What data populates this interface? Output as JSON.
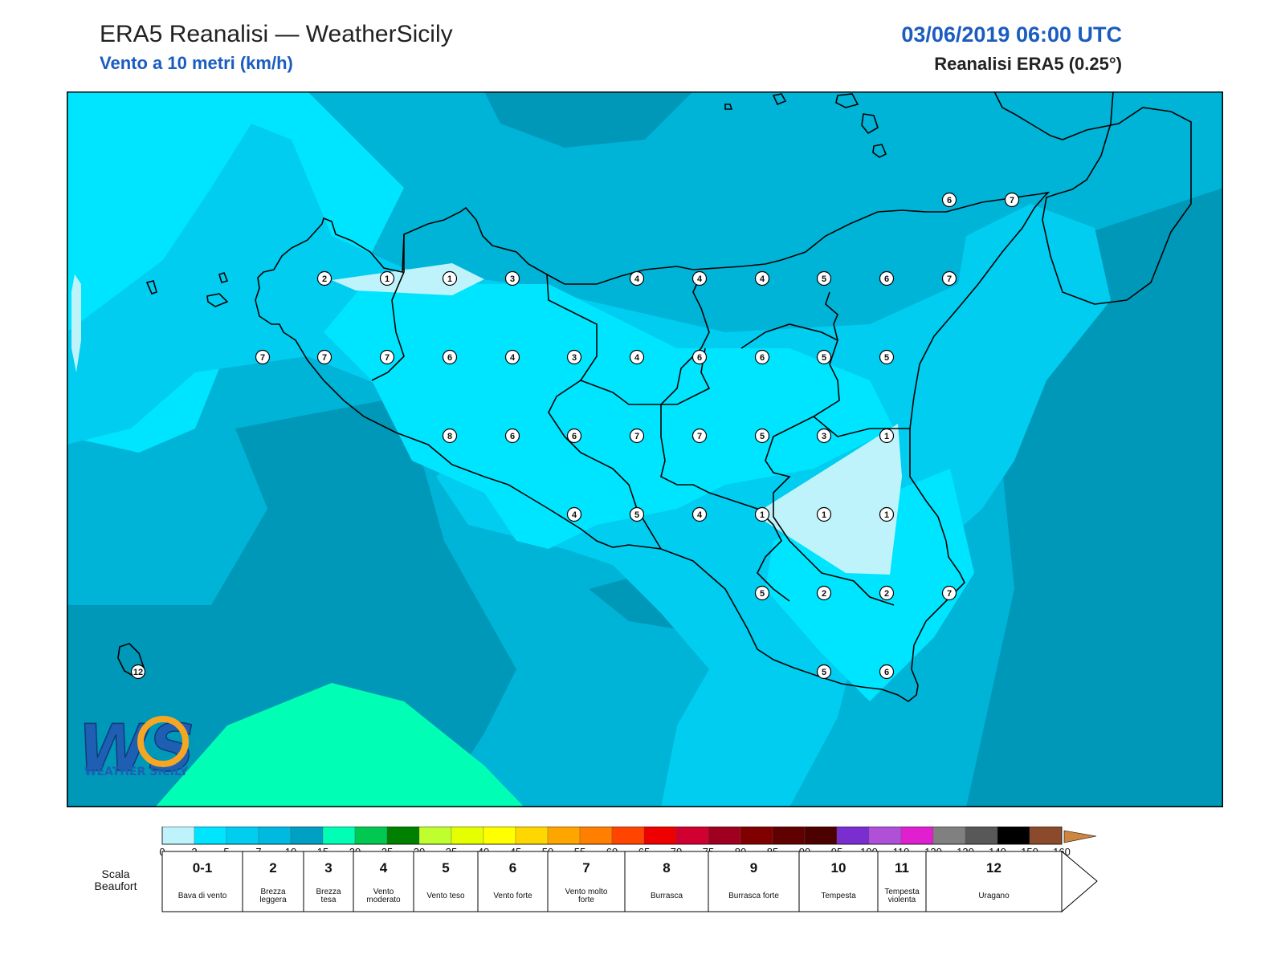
{
  "header": {
    "title": "ERA5 Reanalisi — WeatherSicily",
    "subtitle": "Vento a 10 metri (km/h)",
    "datetime": "03/06/2019 06:00 UTC",
    "reanalysis": "Reanalisi ERA5 (0.25°)"
  },
  "logo": {
    "letters": "WS",
    "text": "WEATHER SICILY"
  },
  "map": {
    "background_color": "#00b4d8",
    "markers": [
      {
        "v": "2"
      },
      {
        "v": "1"
      },
      {
        "v": "1"
      },
      {
        "v": "3"
      },
      {
        "v": "4"
      },
      {
        "v": "4"
      },
      {
        "v": "4"
      },
      {
        "v": "5"
      },
      {
        "v": "6"
      },
      {
        "v": "7"
      },
      {
        "v": "7"
      },
      {
        "v": "7"
      },
      {
        "v": "7"
      },
      {
        "v": "6"
      },
      {
        "v": "4"
      },
      {
        "v": "3"
      },
      {
        "v": "4"
      },
      {
        "v": "6"
      },
      {
        "v": "6"
      },
      {
        "v": "5"
      },
      {
        "v": "5"
      },
      {
        "v": "8"
      },
      {
        "v": "6"
      },
      {
        "v": "6"
      },
      {
        "v": "7"
      },
      {
        "v": "7"
      },
      {
        "v": "5"
      },
      {
        "v": "3"
      },
      {
        "v": "1"
      },
      {
        "v": "4"
      },
      {
        "v": "5"
      },
      {
        "v": "4"
      },
      {
        "v": "1"
      },
      {
        "v": "1"
      },
      {
        "v": "1"
      },
      {
        "v": "5"
      },
      {
        "v": "2"
      },
      {
        "v": "2"
      },
      {
        "v": "7"
      },
      {
        "v": "5"
      },
      {
        "v": "6"
      },
      {
        "v": "6"
      },
      {
        "v": "7"
      },
      {
        "v": "12"
      }
    ]
  },
  "colorbar": {
    "ticks": [
      "0",
      "2",
      "5",
      "7",
      "10",
      "15",
      "20",
      "25",
      "30",
      "35",
      "40",
      "45",
      "50",
      "55",
      "60",
      "65",
      "70",
      "75",
      "80",
      "85",
      "90",
      "95",
      "100",
      "110",
      "120",
      "130",
      "140",
      "150",
      "160"
    ],
    "colors": [
      "#bff3fb",
      "#00e5ff",
      "#00cdf0",
      "#00b9e0",
      "#009fc4",
      "#00ffb4",
      "#00c850",
      "#008000",
      "#bfff30",
      "#e6ff00",
      "#ffff00",
      "#ffd700",
      "#ffa500",
      "#ff7f00",
      "#ff4500",
      "#ee0000",
      "#d00030",
      "#a00020",
      "#800000",
      "#600000",
      "#4d0000",
      "#7b2ed0",
      "#b050d8",
      "#e020d0",
      "#808080",
      "#585858",
      "#000000",
      "#8b4a2b",
      "#cd853f"
    ]
  },
  "beaufort": {
    "label": "Scala Beaufort",
    "classes": [
      {
        "num": "0-1",
        "desc": "Bava di vento"
      },
      {
        "num": "2",
        "desc": "Brezza leggera"
      },
      {
        "num": "3",
        "desc": "Brezza tesa"
      },
      {
        "num": "4",
        "desc": "Vento moderato"
      },
      {
        "num": "5",
        "desc": "Vento teso"
      },
      {
        "num": "6",
        "desc": "Vento forte"
      },
      {
        "num": "7",
        "desc": "Vento molto forte"
      },
      {
        "num": "8",
        "desc": "Burrasca"
      },
      {
        "num": "9",
        "desc": "Burrasca forte"
      },
      {
        "num": "10",
        "desc": "Tempesta"
      },
      {
        "num": "11",
        "desc": "Tempesta violenta"
      },
      {
        "num": "12",
        "desc": "Uragano"
      }
    ]
  }
}
